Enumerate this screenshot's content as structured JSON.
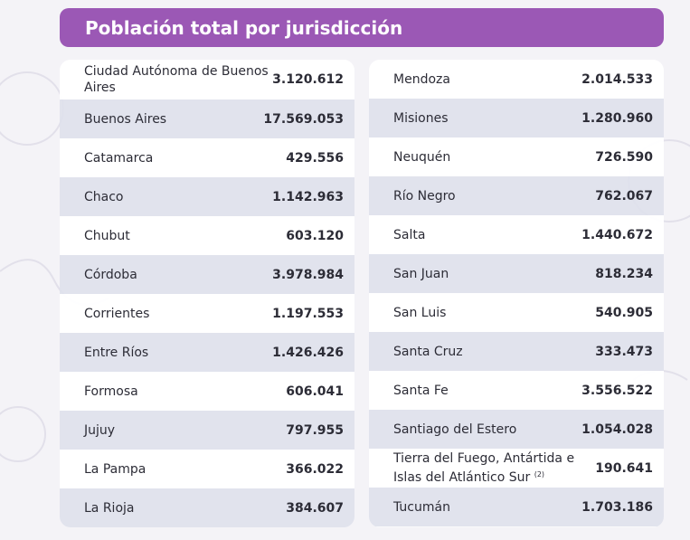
{
  "title": "Población total por jurisdicción",
  "left_rows": [
    {
      "name": "Ciudad Autónoma de Buenos Aires",
      "value": "3.120.612"
    },
    {
      "name": "Buenos Aires",
      "value": "17.569.053"
    },
    {
      "name": "Catamarca",
      "value": "429.556"
    },
    {
      "name": "Chaco",
      "value": "1.142.963"
    },
    {
      "name": "Chubut",
      "value": "603.120"
    },
    {
      "name": "Córdoba",
      "value": "3.978.984"
    },
    {
      "name": "Corrientes",
      "value": "1.197.553"
    },
    {
      "name": "Entre Ríos",
      "value": "1.426.426"
    },
    {
      "name": "Formosa",
      "value": "606.041"
    },
    {
      "name": "Jujuy",
      "value": "797.955"
    },
    {
      "name": "La Pampa",
      "value": "366.022"
    },
    {
      "name": "La Rioja",
      "value": "384.607"
    }
  ],
  "right_rows": [
    {
      "name": "Mendoza",
      "value": "2.014.533"
    },
    {
      "name": "Misiones",
      "value": "1.280.960"
    },
    {
      "name": "Neuquén",
      "value": "726.590"
    },
    {
      "name": "Río Negro",
      "value": "762.067"
    },
    {
      "name": "Salta",
      "value": "1.440.672"
    },
    {
      "name": "San Juan",
      "value": "818.234"
    },
    {
      "name": "San Luis",
      "value": "540.905"
    },
    {
      "name": "Santa Cruz",
      "value": "333.473"
    },
    {
      "name": "Santa Fe",
      "value": "3.556.522"
    },
    {
      "name": "Santiago del Estero",
      "value": "1.054.028"
    },
    {
      "name": "Tierra del Fuego, Antártida e Islas del Atlántico Sur",
      "value": "190.641",
      "note": "(2)"
    },
    {
      "name": "Tucumán",
      "value": "1.703.186"
    }
  ],
  "colors": {
    "header": "#9b58b5",
    "row_alt": "#dcdeea",
    "text": "#2c2c36"
  }
}
